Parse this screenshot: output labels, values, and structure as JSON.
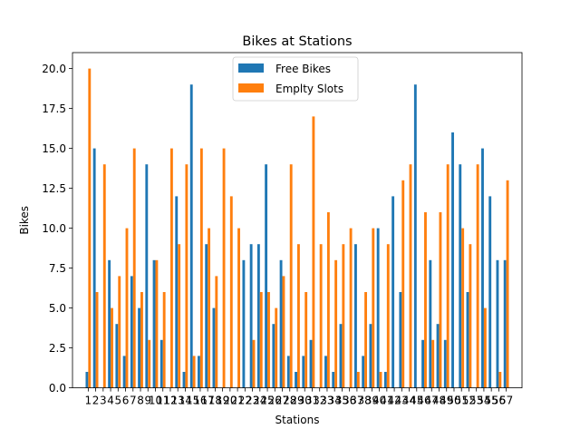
{
  "chart_data": {
    "type": "bar",
    "title": "Bikes at Stations",
    "xlabel": "Stations",
    "ylabel": "Bikes",
    "categories": [
      "1",
      "2",
      "3",
      "4",
      "5",
      "6",
      "7",
      "8",
      "9",
      "10",
      "11",
      "12",
      "13",
      "14",
      "15",
      "16",
      "17",
      "18",
      "19",
      "20",
      "21",
      "22",
      "23",
      "24",
      "25",
      "26",
      "27",
      "28",
      "29",
      "30",
      "31",
      "32",
      "33",
      "34",
      "35",
      "36",
      "37",
      "38",
      "39",
      "40",
      "41",
      "42",
      "43",
      "44",
      "45",
      "46",
      "47",
      "48",
      "49",
      "50",
      "51",
      "52",
      "53",
      "54",
      "55",
      "56",
      "57"
    ],
    "series": [
      {
        "name": "Free Bikes",
        "color": "#1f77b4",
        "values": [
          1,
          15,
          0,
          8,
          4,
          2,
          7,
          5,
          14,
          8,
          3,
          0,
          12,
          1,
          19,
          2,
          9,
          5,
          0,
          0,
          0,
          8,
          9,
          9,
          14,
          4,
          8,
          2,
          1,
          2,
          3,
          0,
          2,
          1,
          4,
          0,
          9,
          2,
          4,
          10,
          1,
          12,
          6,
          0,
          19,
          3,
          8,
          4,
          3,
          16,
          14,
          6,
          0,
          15,
          12,
          8,
          8
        ]
      },
      {
        "name": "Emplty Slots",
        "color": "#ff7f0e",
        "values": [
          20,
          6,
          14,
          5,
          7,
          10,
          15,
          6,
          3,
          8,
          6,
          15,
          9,
          14,
          2,
          15,
          10,
          7,
          15,
          12,
          10,
          0,
          3,
          6,
          6,
          5,
          7,
          14,
          9,
          6,
          17,
          9,
          11,
          8,
          9,
          10,
          1,
          6,
          10,
          1,
          9,
          0,
          13,
          14,
          0,
          11,
          3,
          11,
          14,
          0,
          10,
          9,
          14,
          5,
          0,
          1,
          13
        ]
      }
    ],
    "ylim": [
      0,
      21.0
    ],
    "yticks": [
      "0.0",
      "2.5",
      "5.0",
      "7.5",
      "10.0",
      "12.5",
      "15.0",
      "17.5",
      "20.0"
    ],
    "grid": false,
    "legend_position": "top-center"
  }
}
